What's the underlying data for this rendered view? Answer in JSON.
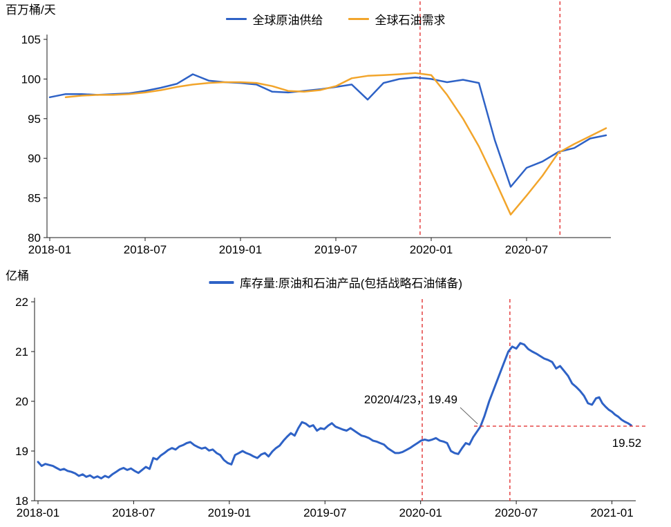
{
  "page": {
    "background": "#ffffff",
    "text_color": "#000000"
  },
  "chart_data": [
    {
      "type": "line",
      "id": "supply-demand",
      "y_axis_unit": "百万桶/天",
      "ylim": [
        80,
        105
      ],
      "y_ticks": [
        105,
        100,
        95,
        90,
        85,
        80
      ],
      "x_tick_labels": [
        "2018-01",
        "2018-07",
        "2019-01",
        "2019-07",
        "2020-01",
        "2020-07"
      ],
      "x_tick_months": [
        0,
        6,
        12,
        18,
        24,
        30
      ],
      "grid": "off",
      "legend_position": "top-center",
      "red_color": "#e02222",
      "red_dashed_vlines_months": [
        23.3,
        32.1
      ],
      "series": [
        {
          "name": "全球原油供给",
          "color": "#2e62c6",
          "start_month": 0,
          "values": [
            97.7,
            98.1,
            98.1,
            98.0,
            98.1,
            98.2,
            98.5,
            98.9,
            99.4,
            100.6,
            99.8,
            99.6,
            99.5,
            99.3,
            98.4,
            98.3,
            98.5,
            98.7,
            99.0,
            99.3,
            97.4,
            99.5,
            100.0,
            100.2,
            100.0,
            99.6,
            99.9,
            99.5,
            92.3,
            86.4,
            88.8,
            89.6,
            90.8,
            91.3,
            92.5,
            92.9
          ]
        },
        {
          "name": "全球石油需求",
          "color": "#f2a52b",
          "start_month": 1,
          "values": [
            97.7,
            97.9,
            98.0,
            98.0,
            98.1,
            98.3,
            98.6,
            99.0,
            99.3,
            99.5,
            99.6,
            99.6,
            99.5,
            99.1,
            98.5,
            98.4,
            98.6,
            99.1,
            100.1,
            100.4,
            100.5,
            100.6,
            100.75,
            100.5,
            98.0,
            95.0,
            91.5,
            87.3,
            82.9,
            85.3,
            87.8,
            90.7,
            91.8,
            92.8,
            93.8
          ]
        }
      ]
    },
    {
      "type": "line",
      "id": "inventory",
      "y_axis_unit": "亿桶",
      "ylim": [
        18,
        22
      ],
      "y_ticks": [
        22,
        21,
        20,
        19,
        18
      ],
      "x_tick_labels": [
        "2018-01",
        "2018-07",
        "2019-01",
        "2019-07",
        "2020-01",
        "2020-07",
        "2021-01"
      ],
      "x_tick_months": [
        0,
        6,
        12,
        18,
        24,
        30,
        36
      ],
      "grid": "off",
      "legend_position": "top-center",
      "red_color": "#e02222",
      "red_dashed_vlines_months": [
        24.1,
        29.6
      ],
      "annotation": {
        "date_label": "2020/4/23，19.49",
        "point_month": 27.75,
        "point_value": 19.49,
        "hline_value": 19.5,
        "hline_start_month": 27.35,
        "hline_end_month": 38.1,
        "end_label": "19.52"
      },
      "series": [
        {
          "name": "库存量:原油和石油产品(包括战略石油储备)",
          "color": "#2e62c6",
          "points": [
            [
              0,
              18.78
            ],
            [
              0.23,
              18.7
            ],
            [
              0.46,
              18.74
            ],
            [
              0.7,
              18.72
            ],
            [
              0.93,
              18.7
            ],
            [
              1.16,
              18.66
            ],
            [
              1.4,
              18.62
            ],
            [
              1.63,
              18.64
            ],
            [
              1.86,
              18.6
            ],
            [
              2.1,
              18.58
            ],
            [
              2.33,
              18.55
            ],
            [
              2.56,
              18.5
            ],
            [
              2.8,
              18.53
            ],
            [
              3.03,
              18.48
            ],
            [
              3.26,
              18.51
            ],
            [
              3.5,
              18.46
            ],
            [
              3.73,
              18.49
            ],
            [
              3.96,
              18.45
            ],
            [
              4.2,
              18.5
            ],
            [
              4.43,
              18.47
            ],
            [
              4.66,
              18.53
            ],
            [
              4.9,
              18.58
            ],
            [
              5.13,
              18.63
            ],
            [
              5.36,
              18.66
            ],
            [
              5.6,
              18.62
            ],
            [
              5.83,
              18.65
            ],
            [
              6.06,
              18.6
            ],
            [
              6.3,
              18.56
            ],
            [
              6.53,
              18.62
            ],
            [
              6.76,
              18.68
            ],
            [
              7.0,
              18.64
            ],
            [
              7.23,
              18.86
            ],
            [
              7.46,
              18.83
            ],
            [
              7.7,
              18.91
            ],
            [
              7.93,
              18.96
            ],
            [
              8.16,
              19.02
            ],
            [
              8.4,
              19.06
            ],
            [
              8.63,
              19.03
            ],
            [
              8.86,
              19.09
            ],
            [
              9.1,
              19.12
            ],
            [
              9.33,
              19.16
            ],
            [
              9.56,
              19.18
            ],
            [
              9.8,
              19.12
            ],
            [
              10.03,
              19.08
            ],
            [
              10.26,
              19.05
            ],
            [
              10.5,
              19.07
            ],
            [
              10.73,
              19.01
            ],
            [
              10.96,
              19.03
            ],
            [
              11.2,
              18.96
            ],
            [
              11.43,
              18.92
            ],
            [
              11.66,
              18.82
            ],
            [
              11.9,
              18.76
            ],
            [
              12.13,
              18.73
            ],
            [
              12.36,
              18.92
            ],
            [
              12.6,
              18.96
            ],
            [
              12.83,
              19.0
            ],
            [
              13.06,
              18.96
            ],
            [
              13.3,
              18.93
            ],
            [
              13.53,
              18.89
            ],
            [
              13.76,
              18.86
            ],
            [
              14.0,
              18.93
            ],
            [
              14.23,
              18.96
            ],
            [
              14.46,
              18.89
            ],
            [
              14.7,
              18.99
            ],
            [
              14.93,
              19.06
            ],
            [
              15.16,
              19.11
            ],
            [
              15.4,
              19.21
            ],
            [
              15.63,
              19.29
            ],
            [
              15.86,
              19.36
            ],
            [
              16.1,
              19.31
            ],
            [
              16.33,
              19.46
            ],
            [
              16.56,
              19.58
            ],
            [
              16.8,
              19.55
            ],
            [
              17.03,
              19.49
            ],
            [
              17.26,
              19.52
            ],
            [
              17.5,
              19.41
            ],
            [
              17.73,
              19.46
            ],
            [
              17.96,
              19.44
            ],
            [
              18.2,
              19.51
            ],
            [
              18.43,
              19.56
            ],
            [
              18.66,
              19.49
            ],
            [
              18.9,
              19.46
            ],
            [
              19.13,
              19.43
            ],
            [
              19.36,
              19.41
            ],
            [
              19.6,
              19.46
            ],
            [
              19.83,
              19.41
            ],
            [
              20.06,
              19.36
            ],
            [
              20.3,
              19.31
            ],
            [
              20.53,
              19.29
            ],
            [
              20.76,
              19.26
            ],
            [
              21.0,
              19.21
            ],
            [
              21.23,
              19.19
            ],
            [
              21.46,
              19.16
            ],
            [
              21.7,
              19.13
            ],
            [
              21.93,
              19.06
            ],
            [
              22.16,
              19.01
            ],
            [
              22.4,
              18.96
            ],
            [
              22.63,
              18.96
            ],
            [
              22.86,
              18.98
            ],
            [
              23.1,
              19.02
            ],
            [
              23.33,
              19.06
            ],
            [
              23.56,
              19.11
            ],
            [
              23.8,
              19.16
            ],
            [
              24.03,
              19.21
            ],
            [
              24.26,
              19.23
            ],
            [
              24.5,
              19.21
            ],
            [
              24.73,
              19.23
            ],
            [
              24.96,
              19.26
            ],
            [
              25.2,
              19.21
            ],
            [
              25.43,
              19.19
            ],
            [
              25.66,
              19.16
            ],
            [
              25.9,
              19.0
            ],
            [
              26.13,
              18.96
            ],
            [
              26.36,
              18.94
            ],
            [
              26.6,
              19.06
            ],
            [
              26.83,
              19.16
            ],
            [
              27.06,
              19.13
            ],
            [
              27.3,
              19.28
            ],
            [
              27.75,
              19.49
            ],
            [
              28.0,
              19.7
            ],
            [
              28.3,
              20.0
            ],
            [
              28.6,
              20.25
            ],
            [
              28.9,
              20.5
            ],
            [
              29.2,
              20.75
            ],
            [
              29.5,
              21.0
            ],
            [
              29.75,
              21.1
            ],
            [
              30.0,
              21.06
            ],
            [
              30.25,
              21.17
            ],
            [
              30.5,
              21.14
            ],
            [
              30.75,
              21.05
            ],
            [
              31.0,
              21.0
            ],
            [
              31.25,
              20.96
            ],
            [
              31.5,
              20.91
            ],
            [
              31.75,
              20.86
            ],
            [
              32.0,
              20.83
            ],
            [
              32.25,
              20.79
            ],
            [
              32.5,
              20.66
            ],
            [
              32.75,
              20.71
            ],
            [
              33.0,
              20.61
            ],
            [
              33.25,
              20.51
            ],
            [
              33.5,
              20.36
            ],
            [
              33.75,
              20.29
            ],
            [
              34.0,
              20.21
            ],
            [
              34.25,
              20.11
            ],
            [
              34.5,
              19.96
            ],
            [
              34.75,
              19.93
            ],
            [
              35.0,
              20.06
            ],
            [
              35.2,
              20.08
            ],
            [
              35.4,
              19.96
            ],
            [
              35.6,
              19.89
            ],
            [
              35.8,
              19.83
            ],
            [
              36.0,
              19.79
            ],
            [
              36.2,
              19.73
            ],
            [
              36.4,
              19.69
            ],
            [
              36.6,
              19.63
            ],
            [
              36.8,
              19.59
            ],
            [
              37.0,
              19.56
            ],
            [
              37.2,
              19.52
            ]
          ]
        }
      ]
    }
  ]
}
